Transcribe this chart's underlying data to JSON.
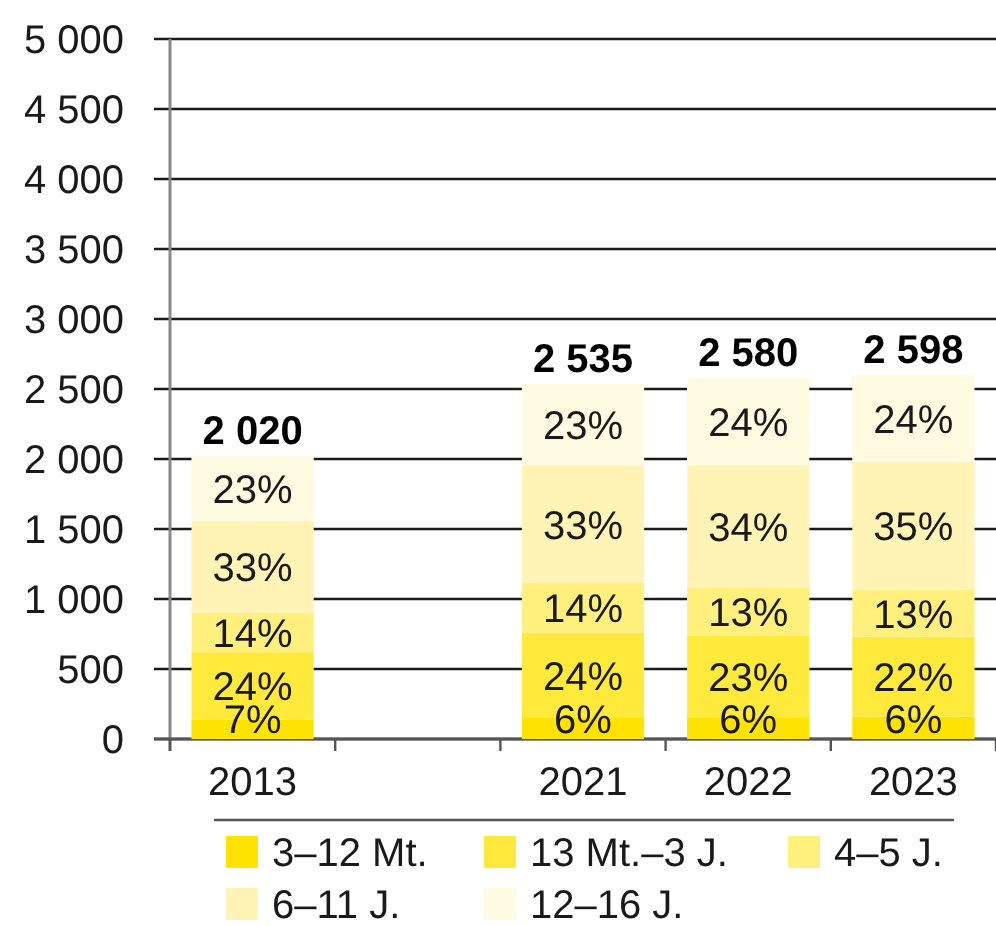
{
  "chart_data": {
    "type": "bar",
    "stacked": true,
    "categories": [
      "2013",
      null,
      "2021",
      "2022",
      "2023"
    ],
    "series": [
      {
        "name": "3–12 Mt.",
        "color": "#ffe300",
        "values": [
          140,
          null,
          150,
          150,
          160
        ]
      },
      {
        "name": "13 Mt.–3 J.",
        "color": "#ffea3c",
        "values": [
          480,
          null,
          610,
          590,
          570
        ]
      },
      {
        "name": "4–5 J.",
        "color": "#fff07e",
        "values": [
          280,
          null,
          355,
          340,
          338
        ]
      },
      {
        "name": "6–11 J.",
        "color": "#fff4b5",
        "values": [
          660,
          null,
          840,
          880,
          910
        ]
      },
      {
        "name": "12–16 J.",
        "color": "#fffae0",
        "values": [
          460,
          null,
          580,
          620,
          620
        ]
      }
    ],
    "totals": [
      "2 020",
      null,
      "2 535",
      "2 580",
      "2 598"
    ],
    "annotations": [
      "7%",
      "24%",
      "14%",
      "33%",
      "23%",
      "6%",
      "24%",
      "14%",
      "33%",
      "23%",
      "6%",
      "23%",
      "13%",
      "34%",
      "24%",
      "6%",
      "22%",
      "13%",
      "35%",
      "24%"
    ],
    "ylim": [
      0,
      5000
    ],
    "yticks": [
      0,
      500,
      {
        "value": 1000,
        "label": "1 000"
      },
      {
        "value": 1500,
        "label": "1 500"
      },
      {
        "value": 2000,
        "label": "2 000"
      },
      {
        "value": 2500,
        "label": "2 500"
      },
      {
        "value": 3000,
        "label": "3 000"
      },
      {
        "value": 3500,
        "label": "3 500"
      },
      {
        "value": 4000,
        "label": "4 000"
      },
      {
        "value": 4500,
        "label": "4 500"
      },
      {
        "value": 5000,
        "label": "5 000"
      }
    ],
    "grid": "y",
    "legend": "bottom"
  }
}
